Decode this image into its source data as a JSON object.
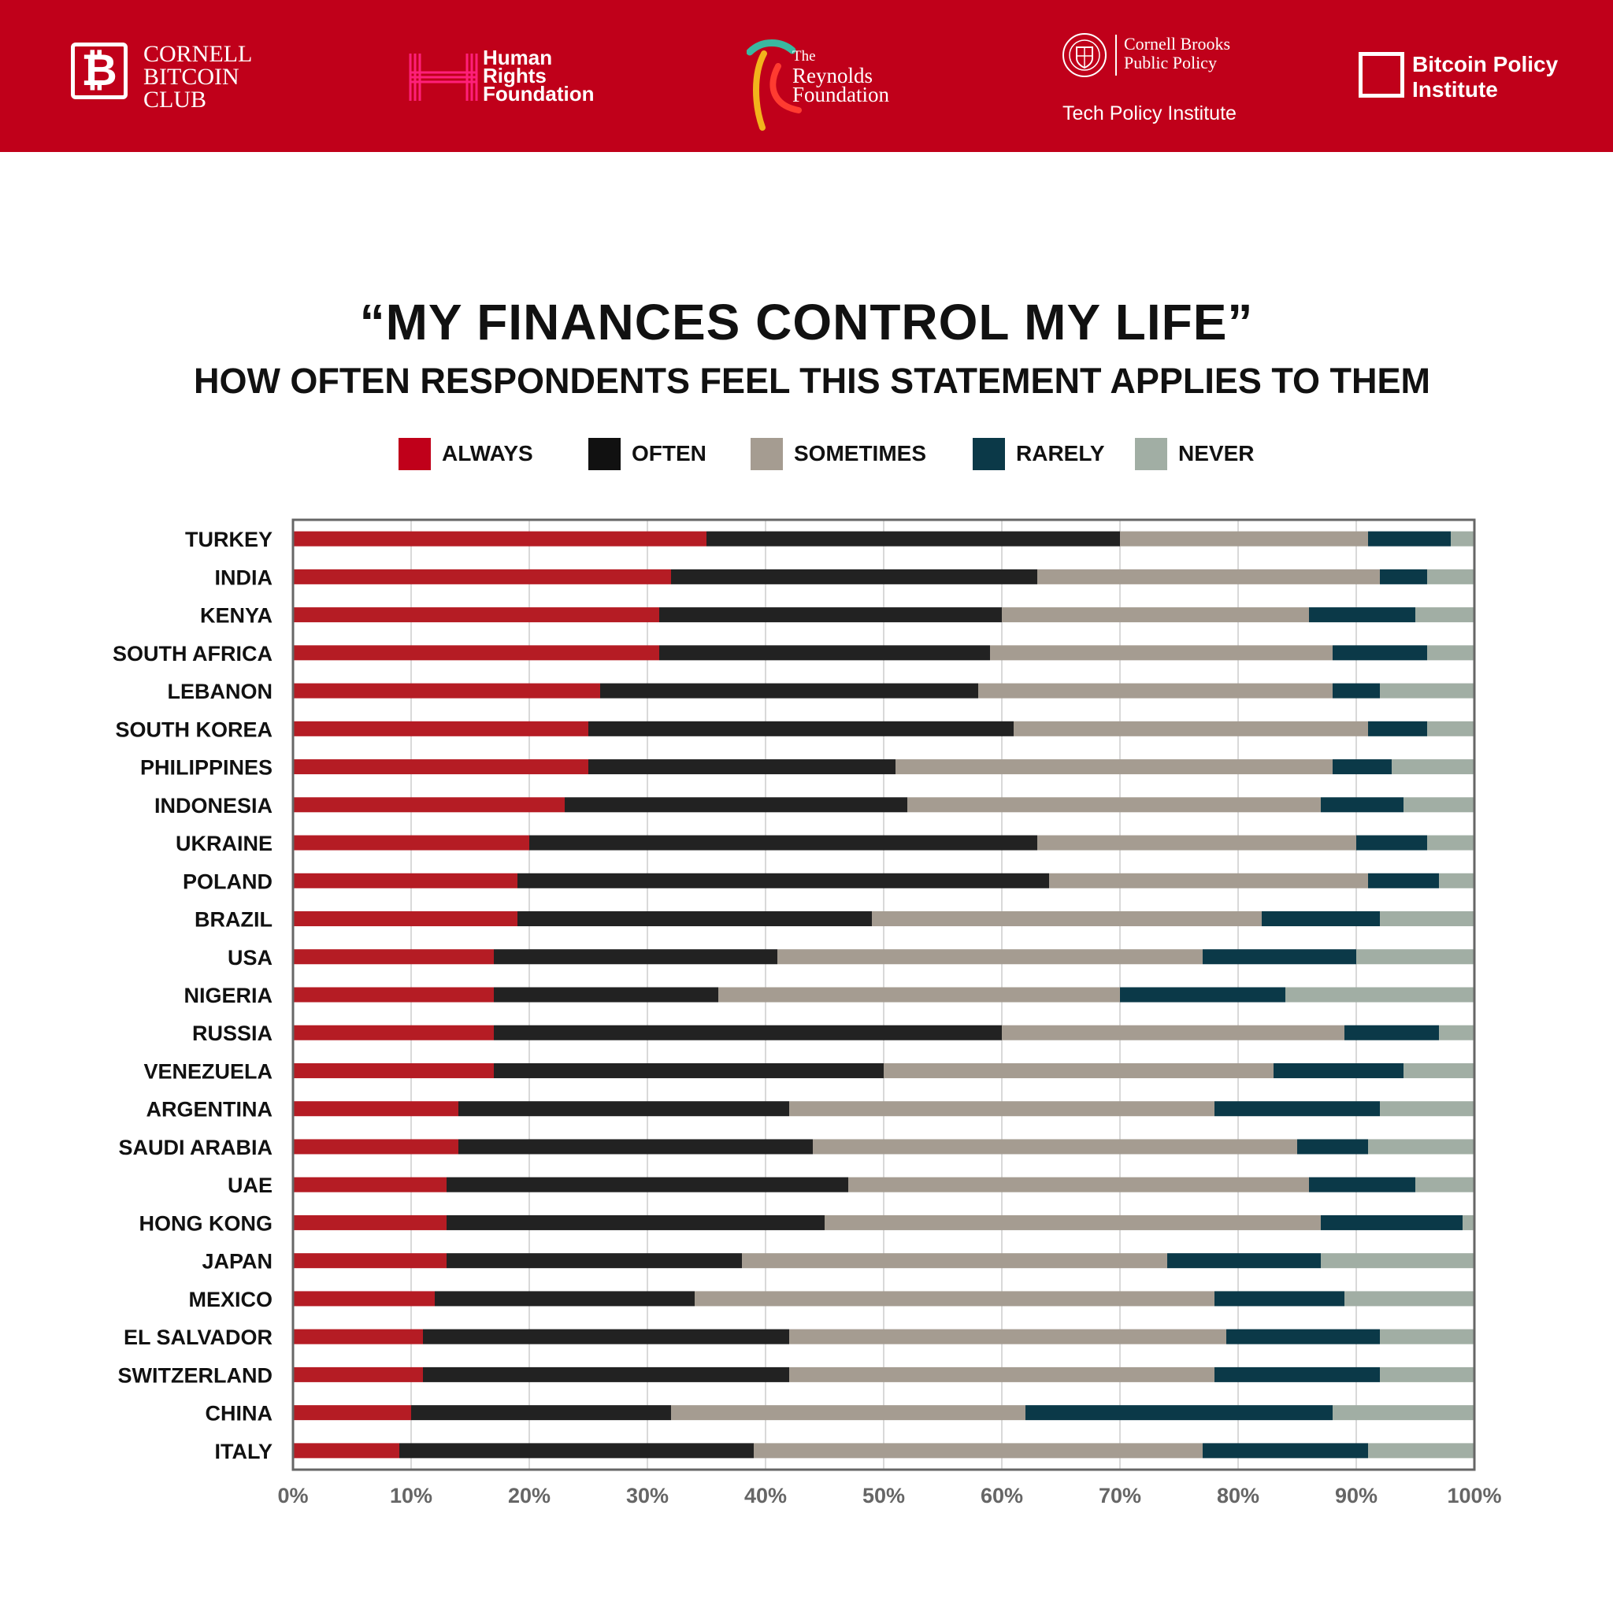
{
  "header": {
    "cornell_bitcoin_club": {
      "line1": "CORNELL",
      "line2": "BITCOIN",
      "line3": "CLUB",
      "icon": "bitcoin-icon"
    },
    "hrf": {
      "line1": "Human",
      "line2": "Rights",
      "line3": "Foundation"
    },
    "reynolds": {
      "line1": "The",
      "line2": "Reynolds",
      "line3": "Foundation"
    },
    "cornell_brooks": {
      "line1": "Cornell Brooks",
      "line2": "Public Policy",
      "sub": "Tech Policy Institute"
    },
    "bpi": {
      "line1": "Bitcoin Policy",
      "line2": "Institute"
    }
  },
  "colors": {
    "header_bg": "#c0001a",
    "always": "#b51c24",
    "often": "#222222",
    "sometimes": "#a59c91",
    "rarely": "#0b3948",
    "never": "#a1aea4",
    "grid": "#d9d9d9",
    "frame": "#666666"
  },
  "chart_data": {
    "type": "bar",
    "orientation": "horizontal",
    "stacked": true,
    "title": "“MY FINANCES CONTROL MY LIFE”",
    "subtitle": "HOW OFTEN RESPONDENTS FEEL THIS STATEMENT APPLIES TO THEM",
    "xlabel": "",
    "ylabel": "",
    "xlim": [
      0,
      100
    ],
    "x_ticks": [
      "0%",
      "10%",
      "20%",
      "30%",
      "40%",
      "50%",
      "60%",
      "70%",
      "80%",
      "90%",
      "100%"
    ],
    "grid": true,
    "legend_position": "top",
    "categories": [
      "TURKEY",
      "INDIA",
      "KENYA",
      "SOUTH AFRICA",
      "LEBANON",
      "SOUTH KOREA",
      "PHILIPPINES",
      "INDONESIA",
      "UKRAINE",
      "POLAND",
      "BRAZIL",
      "USA",
      "NIGERIA",
      "RUSSIA",
      "VENEZUELA",
      "ARGENTINA",
      "SAUDI ARABIA",
      "UAE",
      "HONG KONG",
      "JAPAN",
      "MEXICO",
      "EL SALVADOR",
      "SWITZERLAND",
      "CHINA",
      "ITALY"
    ],
    "series": [
      {
        "name": "ALWAYS",
        "color_key": "always",
        "values": [
          35,
          32,
          31,
          31,
          26,
          25,
          25,
          23,
          20,
          19,
          19,
          17,
          17,
          17,
          17,
          14,
          14,
          13,
          13,
          13,
          12,
          11,
          11,
          10,
          9
        ]
      },
      {
        "name": "OFTEN",
        "color_key": "often",
        "values": [
          35,
          31,
          29,
          28,
          32,
          36,
          26,
          29,
          43,
          45,
          30,
          24,
          19,
          43,
          33,
          28,
          30,
          34,
          32,
          25,
          22,
          31,
          31,
          22,
          30
        ]
      },
      {
        "name": "SOMETIMES",
        "color_key": "sometimes",
        "values": [
          21,
          29,
          26,
          29,
          30,
          30,
          37,
          35,
          27,
          27,
          33,
          36,
          34,
          29,
          33,
          36,
          41,
          39,
          42,
          36,
          44,
          37,
          36,
          30,
          38
        ]
      },
      {
        "name": "RARELY",
        "color_key": "rarely",
        "values": [
          7,
          4,
          9,
          8,
          4,
          5,
          5,
          7,
          6,
          6,
          10,
          13,
          14,
          8,
          11,
          14,
          6,
          9,
          12,
          13,
          11,
          13,
          14,
          26,
          14
        ]
      },
      {
        "name": "NEVER",
        "color_key": "never",
        "values": [
          2,
          4,
          5,
          4,
          8,
          4,
          7,
          6,
          4,
          3,
          8,
          10,
          16,
          3,
          6,
          8,
          9,
          5,
          1,
          13,
          11,
          8,
          8,
          12,
          9
        ]
      }
    ]
  }
}
